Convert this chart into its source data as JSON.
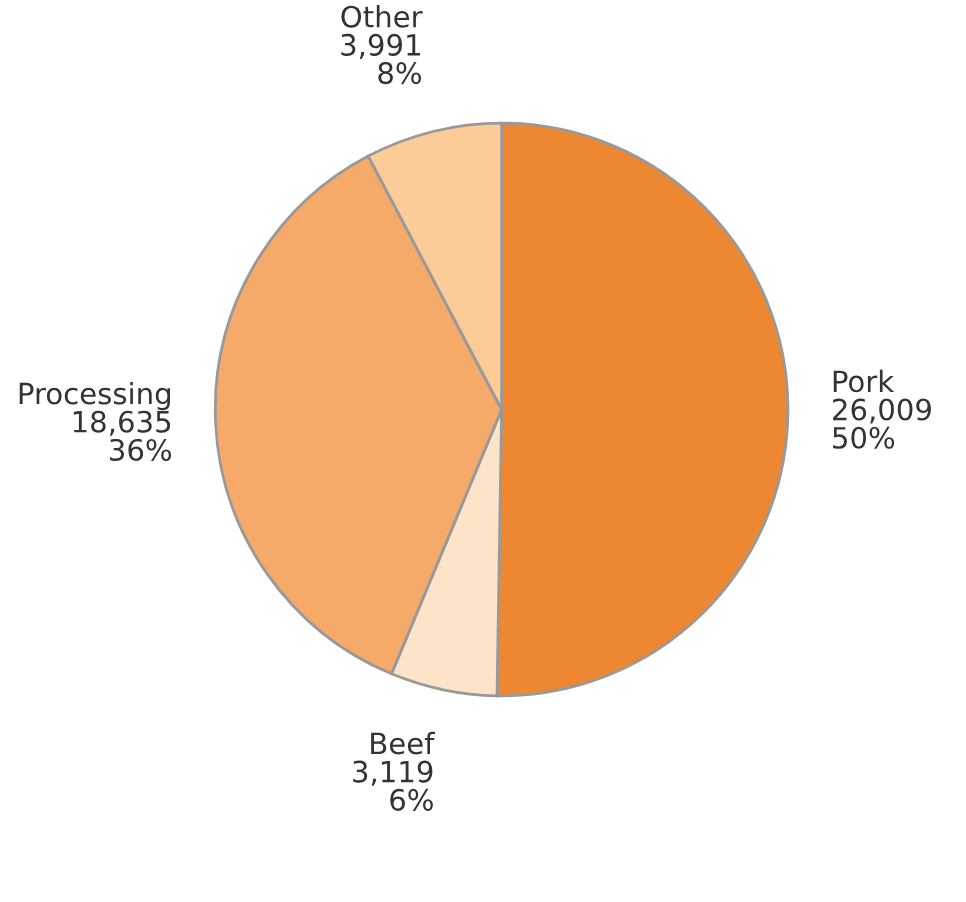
{
  "chart_data": {
    "type": "pie",
    "categories": [
      "Pork",
      "Beef",
      "Processing",
      "Other"
    ],
    "values": [
      26009,
      3119,
      18635,
      3991
    ],
    "value_labels": [
      "26,009\n50%",
      "3,119\n6%",
      "18,635\n36%",
      "3,991\n8%"
    ],
    "colors": [
      "#ed8732",
      "#fde3c8",
      "#f5aa69",
      "#fbcb98"
    ],
    "legend": false
  }
}
